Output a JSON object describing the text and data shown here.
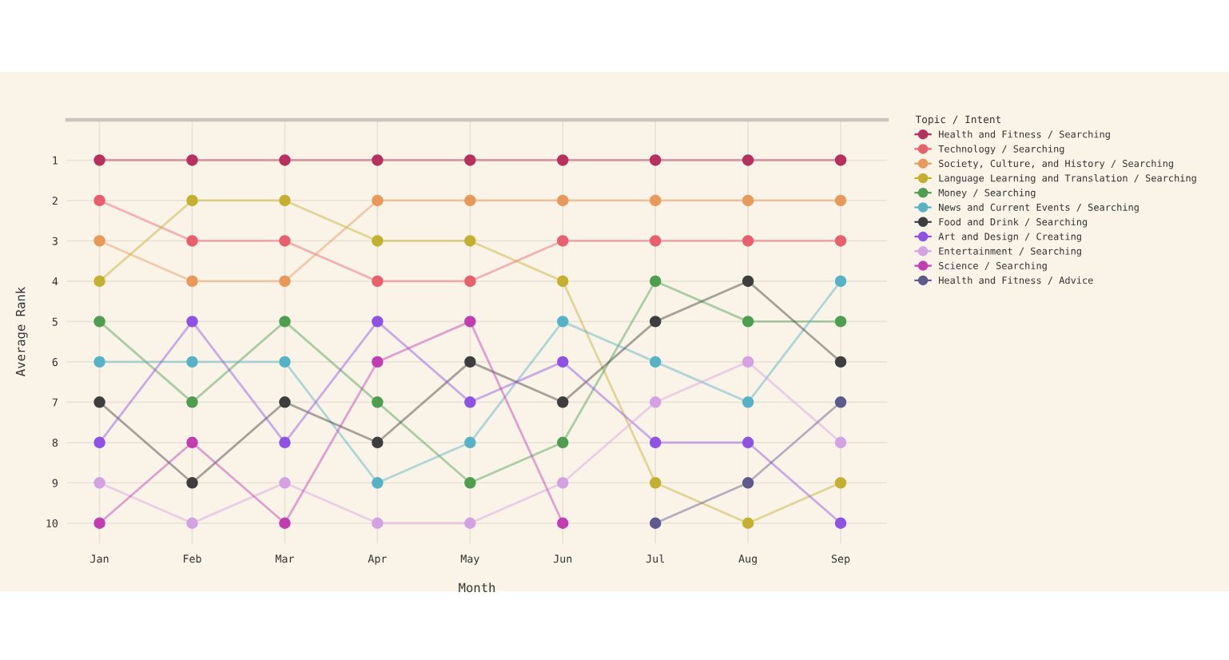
{
  "chart_data": {
    "type": "line",
    "xlabel": "Month",
    "ylabel": "Average Rank",
    "legend_title": "Topic / Intent",
    "categories": [
      "Jan",
      "Feb",
      "Mar",
      "Apr",
      "May",
      "Jun",
      "Jul",
      "Aug",
      "Sep"
    ],
    "ylim": [
      10.5,
      0
    ],
    "yticks": [
      1,
      2,
      3,
      4,
      5,
      6,
      7,
      8,
      9,
      10
    ],
    "grid": true,
    "legend": "right",
    "marker": "circle",
    "line_style": "solid",
    "series": [
      {
        "name": "Health and Fitness / Searching",
        "color": "#b8305e",
        "values": [
          1,
          1,
          1,
          1,
          1,
          1,
          1,
          1,
          1
        ]
      },
      {
        "name": "Technology / Searching",
        "color": "#e8606c",
        "values": [
          2,
          3,
          3,
          4,
          4,
          3,
          3,
          3,
          3
        ]
      },
      {
        "name": "Society, Culture, and History / Searching",
        "color": "#e8995a",
        "values": [
          3,
          4,
          4,
          2,
          2,
          2,
          2,
          2,
          2
        ]
      },
      {
        "name": "Language Learning and Translation / Searching",
        "color": "#c4b030",
        "values": [
          4,
          2,
          2,
          3,
          3,
          4,
          9,
          10,
          9
        ]
      },
      {
        "name": "Money / Searching",
        "color": "#4e9e50",
        "values": [
          5,
          7,
          5,
          7,
          9,
          8,
          4,
          5,
          5
        ]
      },
      {
        "name": "News and Current Events / Searching",
        "color": "#56b2c6",
        "values": [
          6,
          6,
          6,
          9,
          8,
          5,
          6,
          7,
          4
        ]
      },
      {
        "name": "Food and Drink / Searching",
        "color": "#3e3e3e",
        "values": [
          7,
          9,
          7,
          8,
          6,
          7,
          5,
          4,
          6
        ]
      },
      {
        "name": "Art and Design / Creating",
        "color": "#8e52e4",
        "values": [
          8,
          5,
          8,
          5,
          7,
          6,
          8,
          8,
          10
        ]
      },
      {
        "name": "Entertainment / Searching",
        "color": "#d4a2e2",
        "values": [
          9,
          10,
          9,
          10,
          10,
          9,
          7,
          6,
          8
        ]
      },
      {
        "name": "Science / Searching",
        "color": "#c23cb2",
        "values": [
          10,
          8,
          10,
          6,
          5,
          10,
          null,
          null,
          null
        ]
      },
      {
        "name": "Health and Fitness / Advice",
        "color": "#5e5a8e",
        "values": [
          null,
          null,
          null,
          null,
          null,
          null,
          10,
          9,
          7
        ]
      }
    ]
  }
}
